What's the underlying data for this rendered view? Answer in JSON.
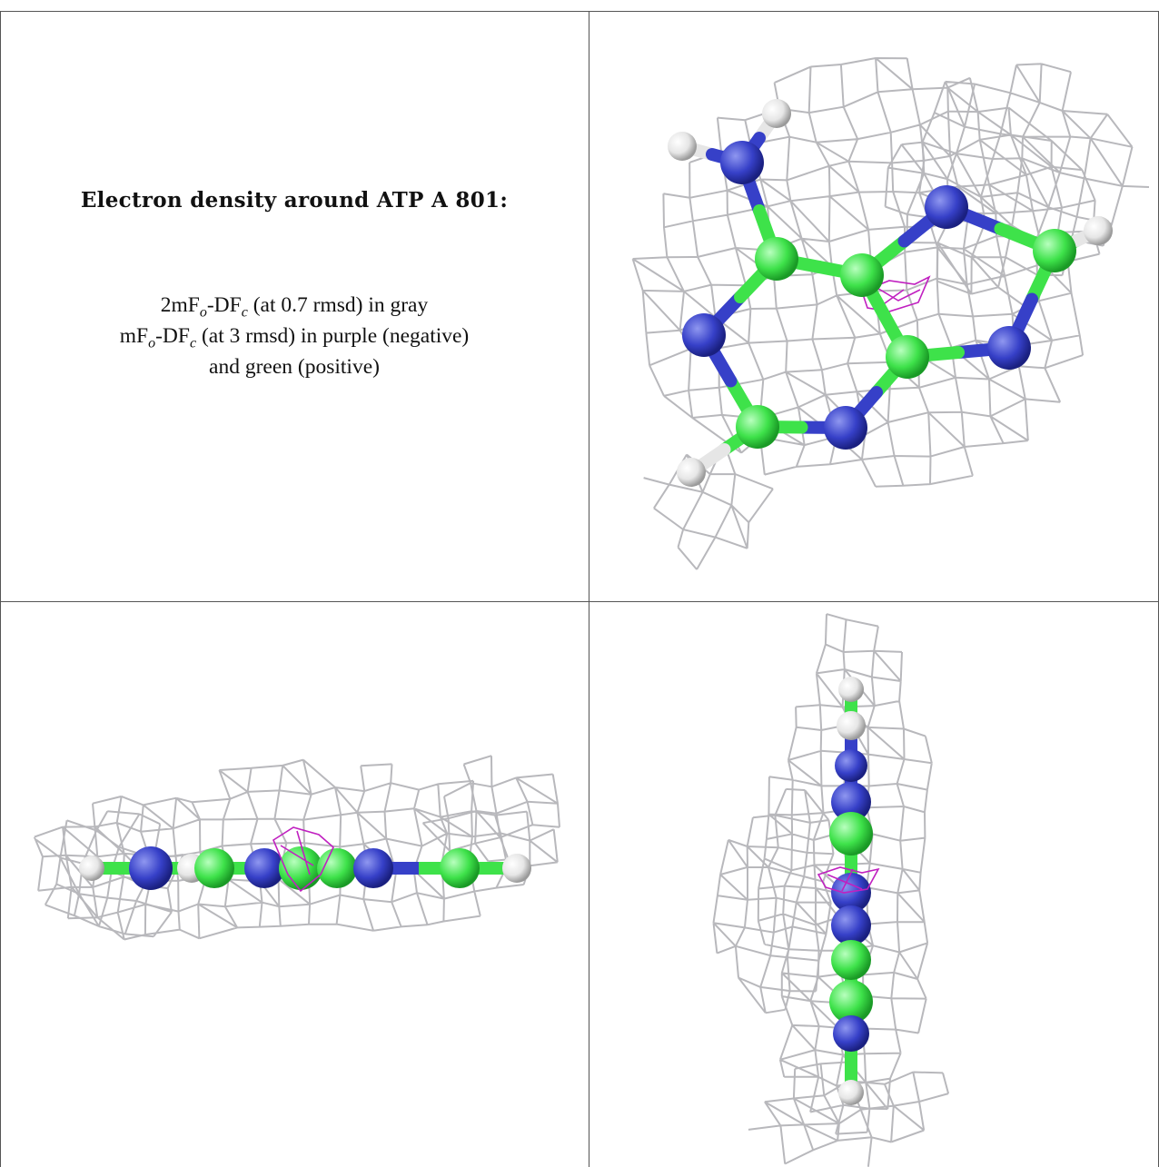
{
  "caption": {
    "title": "Electron density around ATP A 801:",
    "map1": {
      "prefix": "2mF",
      "sub_o": "o",
      "mid": "-DF",
      "sub_c": "c",
      "suffix": " (at 0.7 rmsd) in gray"
    },
    "map2": {
      "prefix": "mF",
      "sub_o": "o",
      "mid": "-DF",
      "sub_c": "c",
      "suffix": " (at 3 rmsd) in purple (negative)"
    },
    "map2_cont": "and green (positive)"
  },
  "colors": {
    "mesh": "#b8b8bc",
    "carbon": "#3ee24a",
    "nitrogen": "#3640c8",
    "hydrogen": "#e6e6e6",
    "negative_density": "#c020c0",
    "border": "#555555"
  },
  "views": [
    {
      "name": "top-view"
    },
    {
      "name": "side-view"
    },
    {
      "name": "edge-view"
    }
  ]
}
